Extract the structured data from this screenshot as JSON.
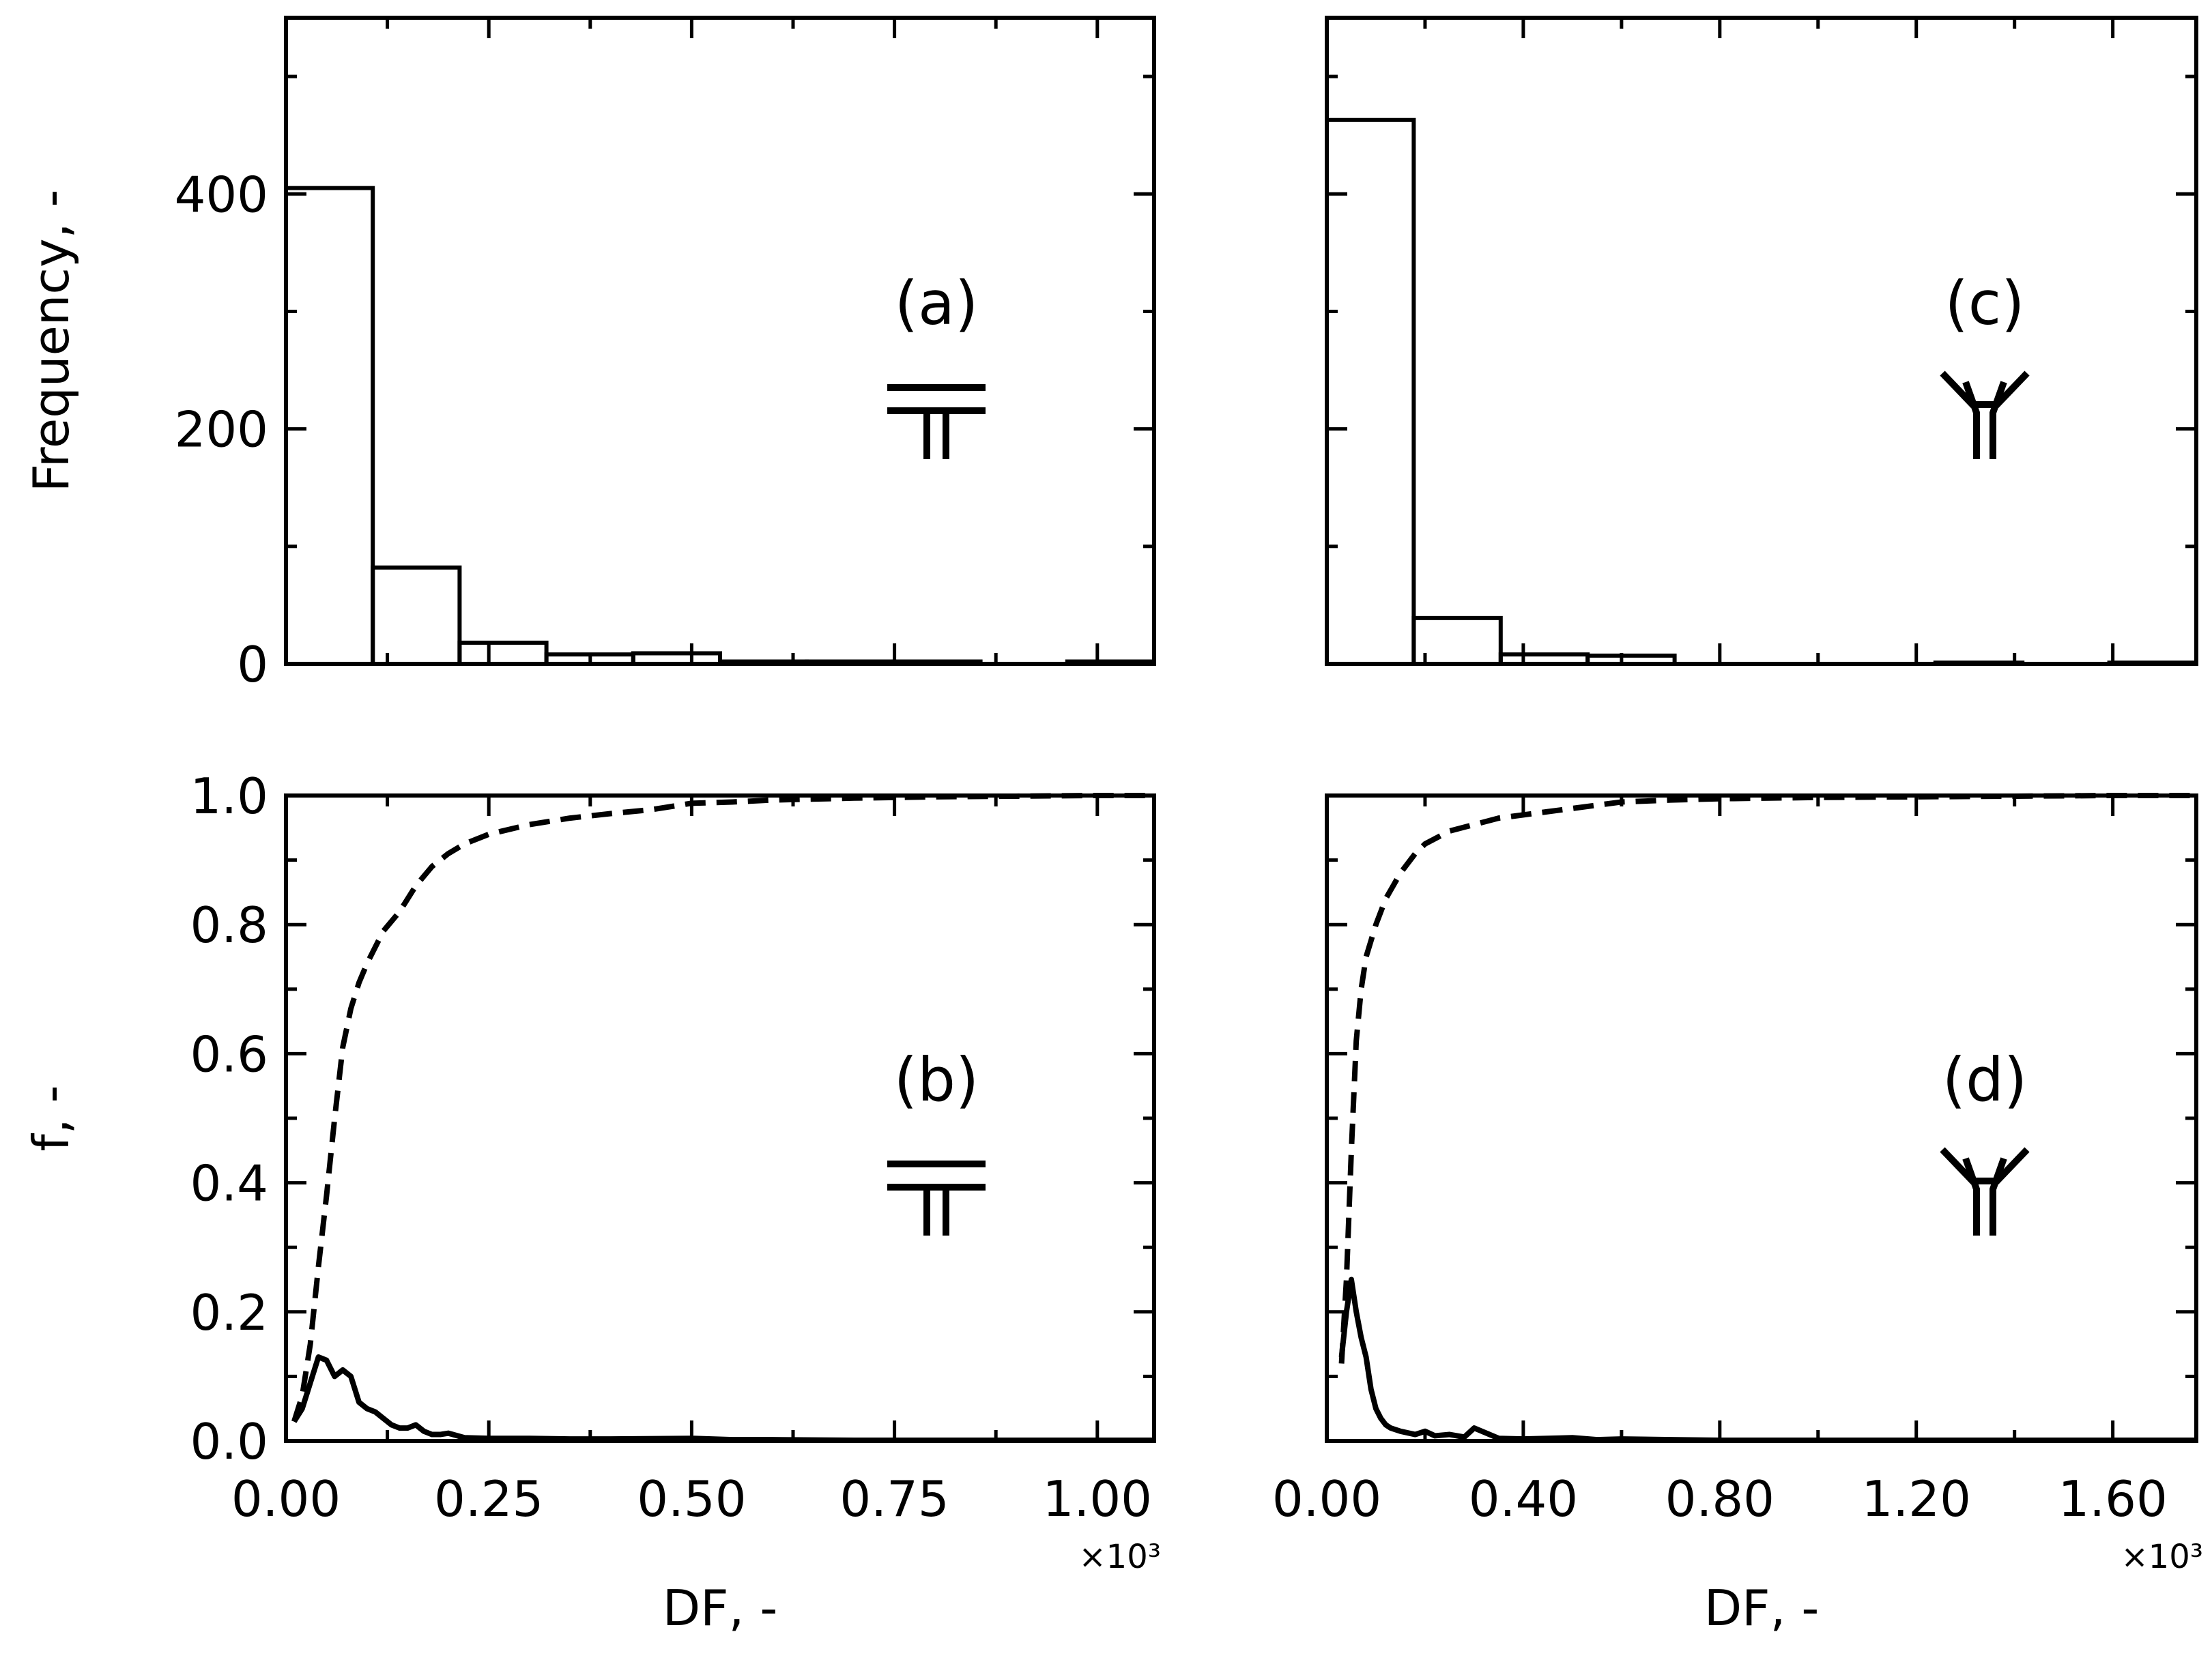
{
  "chart_data": [
    {
      "id": "a",
      "type": "bar",
      "title": "(a)",
      "symbol": "T-junction",
      "xlabel": "",
      "ylabel": "Frequency, -",
      "xlim": [
        0,
        1.07
      ],
      "ylim": [
        0,
        550
      ],
      "x_multiplier": "×10³",
      "bins": [
        {
          "x0": 0.0,
          "x1": 0.107,
          "value": 405
        },
        {
          "x0": 0.107,
          "x1": 0.214,
          "value": 82
        },
        {
          "x0": 0.214,
          "x1": 0.321,
          "value": 18
        },
        {
          "x0": 0.321,
          "x1": 0.428,
          "value": 8
        },
        {
          "x0": 0.428,
          "x1": 0.535,
          "value": 9
        },
        {
          "x0": 0.535,
          "x1": 0.642,
          "value": 2
        },
        {
          "x0": 0.642,
          "x1": 0.749,
          "value": 2
        },
        {
          "x0": 0.749,
          "x1": 0.856,
          "value": 2
        },
        {
          "x0": 0.856,
          "x1": 0.963,
          "value": 0
        },
        {
          "x0": 0.963,
          "x1": 1.07,
          "value": 2
        }
      ],
      "yticks": [
        0,
        200,
        400
      ],
      "ytick_labels": [
        "0",
        "200",
        "400"
      ],
      "xticks": [
        0,
        0.25,
        0.5,
        0.75,
        1.0
      ],
      "xtick_labels": []
    },
    {
      "id": "b",
      "type": "line",
      "title": "(b)",
      "symbol": "T-junction",
      "xlabel": "DF, -",
      "ylabel": "f, -",
      "xlim": [
        0,
        1.07
      ],
      "ylim": [
        0,
        1.0
      ],
      "x_multiplier": "×10³",
      "xticks": [
        0,
        0.25,
        0.5,
        0.75,
        1.0
      ],
      "xtick_labels": [
        "0.00",
        "0.25",
        "0.50",
        "0.75",
        "1.00"
      ],
      "yticks": [
        0,
        0.2,
        0.4,
        0.6,
        0.8,
        1.0
      ],
      "ytick_labels": [
        "0.0",
        "0.2",
        "0.4",
        "0.6",
        "0.8",
        "1.0"
      ],
      "series": [
        {
          "name": "pdf",
          "style": "solid",
          "x": [
            0.01,
            0.02,
            0.03,
            0.04,
            0.05,
            0.06,
            0.07,
            0.08,
            0.09,
            0.1,
            0.11,
            0.12,
            0.13,
            0.14,
            0.15,
            0.16,
            0.17,
            0.18,
            0.19,
            0.2,
            0.22,
            0.25,
            0.3,
            0.35,
            0.4,
            0.5,
            0.55,
            0.6,
            0.7,
            0.8,
            1.0,
            1.07
          ],
          "y": [
            0.03,
            0.05,
            0.09,
            0.13,
            0.125,
            0.1,
            0.11,
            0.1,
            0.06,
            0.05,
            0.045,
            0.035,
            0.025,
            0.02,
            0.02,
            0.025,
            0.015,
            0.01,
            0.01,
            0.012,
            0.005,
            0.004,
            0.004,
            0.003,
            0.003,
            0.004,
            0.002,
            0.002,
            0.001,
            0.001,
            0.001,
            0.001
          ]
        },
        {
          "name": "cdf",
          "style": "dashed",
          "x": [
            0.01,
            0.02,
            0.03,
            0.04,
            0.05,
            0.06,
            0.07,
            0.08,
            0.09,
            0.1,
            0.12,
            0.14,
            0.16,
            0.18,
            0.2,
            0.22,
            0.25,
            0.3,
            0.35,
            0.4,
            0.45,
            0.5,
            0.55,
            0.6,
            0.7,
            0.8,
            0.9,
            1.0,
            1.07
          ],
          "y": [
            0.03,
            0.07,
            0.15,
            0.27,
            0.38,
            0.5,
            0.61,
            0.67,
            0.71,
            0.74,
            0.79,
            0.82,
            0.86,
            0.89,
            0.91,
            0.925,
            0.94,
            0.955,
            0.965,
            0.972,
            0.978,
            0.988,
            0.99,
            0.993,
            0.996,
            0.998,
            0.999,
            1.0,
            1.0
          ]
        }
      ]
    },
    {
      "id": "c",
      "type": "bar",
      "title": "(c)",
      "symbol": "Y-junction",
      "xlabel": "",
      "ylabel": "",
      "xlim": [
        0,
        1.77
      ],
      "ylim": [
        0,
        550
      ],
      "x_multiplier": "×10³",
      "bins": [
        {
          "x0": 0.0,
          "x1": 0.177,
          "value": 463
        },
        {
          "x0": 0.177,
          "x1": 0.354,
          "value": 39
        },
        {
          "x0": 0.354,
          "x1": 0.531,
          "value": 8
        },
        {
          "x0": 0.531,
          "x1": 0.708,
          "value": 7
        },
        {
          "x0": 0.708,
          "x1": 0.885,
          "value": 0
        },
        {
          "x0": 0.885,
          "x1": 1.062,
          "value": 0
        },
        {
          "x0": 1.062,
          "x1": 1.239,
          "value": 0
        },
        {
          "x0": 1.239,
          "x1": 1.416,
          "value": 1
        },
        {
          "x0": 1.416,
          "x1": 1.593,
          "value": 0
        },
        {
          "x0": 1.593,
          "x1": 1.77,
          "value": 1
        }
      ],
      "yticks": [
        0,
        200,
        400
      ],
      "ytick_labels": [],
      "xticks": [
        0,
        0.4,
        0.8,
        1.2,
        1.6
      ],
      "xtick_labels": []
    },
    {
      "id": "d",
      "type": "line",
      "title": "(d)",
      "symbol": "Y-junction",
      "xlabel": "DF, -",
      "ylabel": "",
      "xlim": [
        0,
        1.77
      ],
      "ylim": [
        0,
        1.0
      ],
      "x_multiplier": "×10³",
      "xticks": [
        0,
        0.4,
        0.8,
        1.2,
        1.6
      ],
      "xtick_labels": [
        "0.00",
        "0.40",
        "0.80",
        "1.20",
        "1.60"
      ],
      "yticks": [
        0,
        0.2,
        0.4,
        0.6,
        0.8,
        1.0
      ],
      "ytick_labels": [],
      "series": [
        {
          "name": "pdf",
          "style": "solid",
          "x": [
            0.03,
            0.04,
            0.05,
            0.06,
            0.07,
            0.08,
            0.09,
            0.1,
            0.11,
            0.12,
            0.13,
            0.15,
            0.18,
            0.2,
            0.22,
            0.25,
            0.28,
            0.3,
            0.35,
            0.4,
            0.5,
            0.55,
            0.6,
            0.7,
            0.8,
            1.0,
            1.3,
            1.77
          ],
          "y": [
            0.13,
            0.2,
            0.25,
            0.2,
            0.16,
            0.13,
            0.08,
            0.05,
            0.035,
            0.025,
            0.02,
            0.015,
            0.01,
            0.015,
            0.008,
            0.01,
            0.006,
            0.02,
            0.004,
            0.003,
            0.005,
            0.002,
            0.003,
            0.002,
            0.001,
            0.001,
            0.001,
            0.001
          ]
        },
        {
          "name": "cdf",
          "style": "dashed",
          "x": [
            0.03,
            0.04,
            0.05,
            0.06,
            0.07,
            0.08,
            0.1,
            0.12,
            0.15,
            0.18,
            0.2,
            0.25,
            0.3,
            0.35,
            0.4,
            0.45,
            0.5,
            0.55,
            0.6,
            0.7,
            0.8,
            0.9,
            1.0,
            1.2,
            1.4,
            1.6,
            1.77
          ],
          "y": [
            0.12,
            0.25,
            0.45,
            0.62,
            0.7,
            0.75,
            0.8,
            0.84,
            0.88,
            0.91,
            0.925,
            0.945,
            0.955,
            0.965,
            0.97,
            0.975,
            0.98,
            0.985,
            0.99,
            0.993,
            0.995,
            0.996,
            0.997,
            0.998,
            0.999,
            1.0,
            1.0
          ]
        }
      ]
    }
  ]
}
